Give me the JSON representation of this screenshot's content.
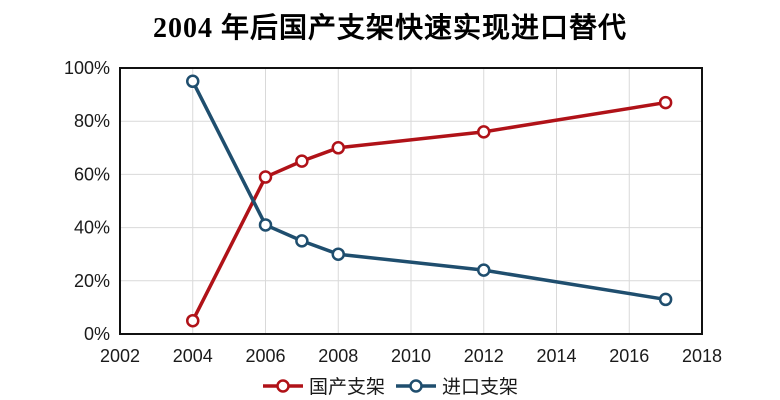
{
  "title": "2004 年后国产支架快速实现进口替代",
  "chart_data": {
    "type": "line",
    "title": "2004 年后国产支架快速实现进口替代",
    "xlabel": "",
    "ylabel": "",
    "x": [
      2004,
      2006,
      2007,
      2008,
      2012,
      2017
    ],
    "series": [
      {
        "name": "国产支架",
        "color": "#b01218",
        "values": [
          5,
          59,
          65,
          70,
          76,
          87
        ]
      },
      {
        "name": "进口支架",
        "color": "#1f4e6e",
        "values": [
          95,
          41,
          35,
          30,
          24,
          13
        ]
      }
    ],
    "x_axis": {
      "min": 2002,
      "max": 2018,
      "tick_step": 2,
      "tick_labels": [
        "2002",
        "2004",
        "2006",
        "2008",
        "2010",
        "2012",
        "2014",
        "2016",
        "2018"
      ]
    },
    "y_axis": {
      "min": 0,
      "max": 100,
      "tick_step": 20,
      "unit": "%",
      "tick_labels": [
        "0%",
        "20%",
        "40%",
        "60%",
        "80%",
        "100%"
      ]
    },
    "grid": true,
    "legend_position": "bottom",
    "marker": "open-circle",
    "style": {
      "grid_color": "#d9d9d9",
      "border_color": "#111111",
      "text_color": "#1a1a1a",
      "marker_fill": "#ffffff"
    }
  }
}
